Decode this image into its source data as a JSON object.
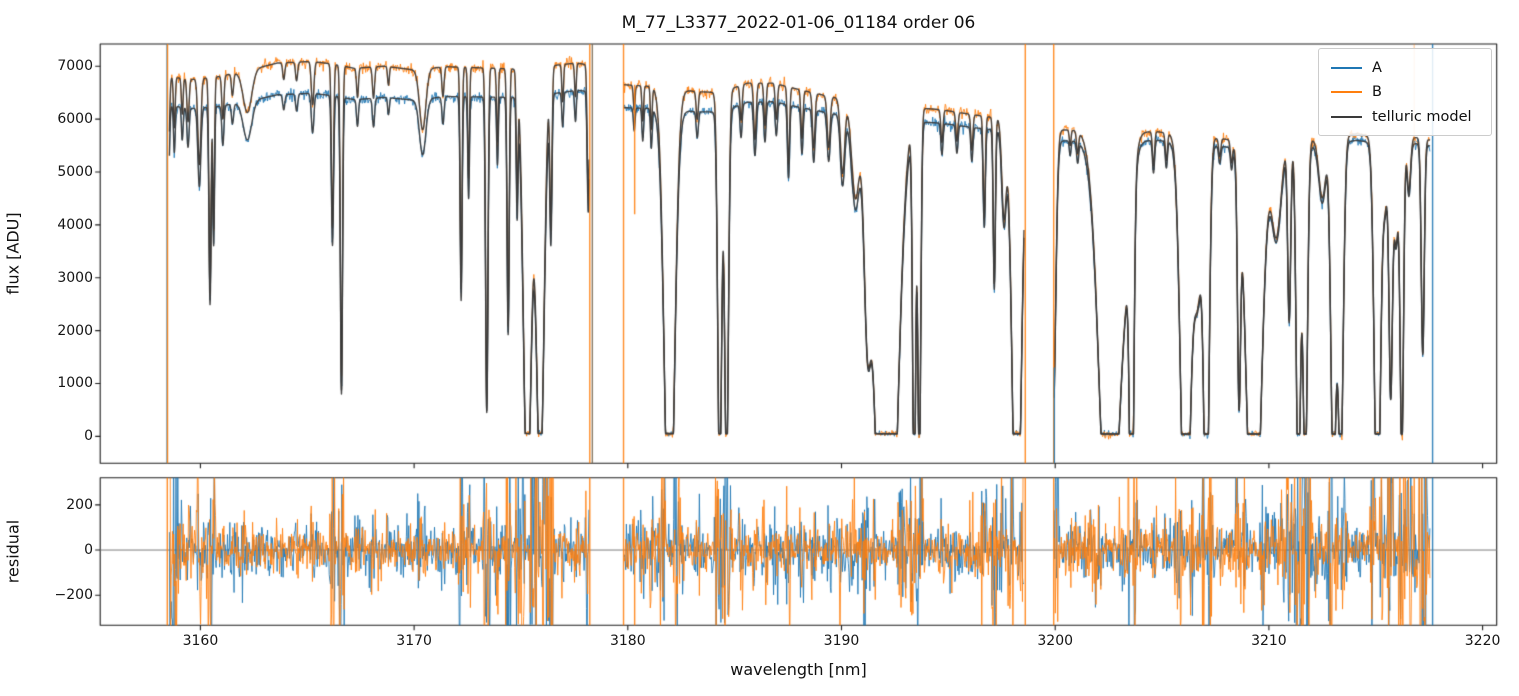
{
  "figure_title": "M_77_L3377_2022-01-06_01184  order 06",
  "chart_data": {
    "type": "line",
    "title": "M_77_L3377_2022-01-06_01184  order 06",
    "xlabel": "wavelength [nm]",
    "xlim": [
      3155.31,
      3220.66
    ],
    "xticks": [
      3160,
      3170,
      3180,
      3190,
      3200,
      3210,
      3220
    ],
    "grid": false,
    "panels": [
      {
        "id": "flux",
        "ylabel": "flux [ADU]",
        "ylim": [
          -510,
          7420
        ],
        "yticks": [
          0,
          1000,
          2000,
          3000,
          4000,
          5000,
          6000,
          7000
        ],
        "legend_position": "upper right"
      },
      {
        "id": "residual",
        "ylabel": "residual",
        "ylim": [
          -333,
          320
        ],
        "yticks": [
          -200,
          0,
          200
        ],
        "ytick_labels": [
          "−200",
          "0",
          "200"
        ],
        "zero_line": true
      }
    ],
    "series": [
      {
        "name": "A",
        "color": "#1f77b4"
      },
      {
        "name": "B",
        "color": "#ff7f0e"
      },
      {
        "name": "telluric model",
        "color": "#3a3a3a"
      }
    ],
    "spectrum": {
      "segments_nm": [
        [
          3158.55,
          3178.2
        ],
        [
          3179.82,
          3198.55
        ],
        [
          3199.95,
          3217.55
        ]
      ],
      "continuum_B": [
        [
          3158.5,
          6800
        ],
        [
          3159.6,
          6750
        ],
        [
          3160.8,
          6800
        ],
        [
          3162,
          6900
        ],
        [
          3163,
          7000
        ],
        [
          3163.6,
          7060
        ],
        [
          3165.2,
          7090
        ],
        [
          3166.2,
          7040
        ],
        [
          3167.2,
          6960
        ],
        [
          3168.6,
          7000
        ],
        [
          3170,
          6930
        ],
        [
          3171.5,
          6990
        ],
        [
          3173,
          6970
        ],
        [
          3174.5,
          6950
        ],
        [
          3176.2,
          7000
        ],
        [
          3177.6,
          7060
        ],
        [
          3178.2,
          7020
        ],
        [
          3179.8,
          6650
        ],
        [
          3181,
          6620
        ],
        [
          3183.2,
          6520
        ],
        [
          3184.3,
          6500
        ],
        [
          3185.6,
          6680
        ],
        [
          3186.8,
          6680
        ],
        [
          3188,
          6560
        ],
        [
          3189.5,
          6420
        ],
        [
          3191,
          6320
        ],
        [
          3193,
          6230
        ],
        [
          3194.6,
          6180
        ],
        [
          3196.2,
          6080
        ],
        [
          3198,
          5980
        ],
        [
          3198.6,
          5920
        ],
        [
          3199.9,
          5800
        ],
        [
          3201,
          5790
        ],
        [
          3203,
          5760
        ],
        [
          3204.8,
          5760
        ],
        [
          3206.2,
          5680
        ],
        [
          3208,
          5620
        ],
        [
          3210,
          5600
        ],
        [
          3212.2,
          5620
        ],
        [
          3214.1,
          5720
        ],
        [
          3215.5,
          5640
        ],
        [
          3216.9,
          5650
        ],
        [
          3217.6,
          5600
        ]
      ],
      "A_to_B_ratio": [
        [
          3158.5,
          0.92
        ],
        [
          3163,
          0.915
        ],
        [
          3168,
          0.915
        ],
        [
          3172,
          0.92
        ],
        [
          3177,
          0.925
        ],
        [
          3180,
          0.935
        ],
        [
          3185,
          0.945
        ],
        [
          3190,
          0.952
        ],
        [
          3194,
          0.958
        ],
        [
          3198,
          0.962
        ],
        [
          3201,
          0.965
        ],
        [
          3205,
          0.972
        ],
        [
          3209,
          0.975
        ],
        [
          3213,
          0.978
        ],
        [
          3217.6,
          0.98
        ]
      ],
      "absorption_lines": [
        [
          3158.5,
          0.05,
          0.25
        ],
        [
          3158.78,
          0.04,
          0.14
        ],
        [
          3159.15,
          0.04,
          0.1
        ],
        [
          3159.42,
          0.05,
          0.12
        ],
        [
          3159.95,
          0.07,
          0.24
        ],
        [
          3160.45,
          0.05,
          0.6
        ],
        [
          3160.62,
          0.04,
          0.42
        ],
        [
          3161.05,
          0.05,
          0.12
        ],
        [
          3161.5,
          0.05,
          0.06
        ],
        [
          3162.2,
          0.2,
          0.115
        ],
        [
          3163.9,
          0.05,
          0.045
        ],
        [
          3164.5,
          0.05,
          0.05
        ],
        [
          3165.25,
          0.06,
          0.115
        ],
        [
          3166.18,
          0.05,
          0.44
        ],
        [
          3166.6,
          0.05,
          0.875
        ],
        [
          3167.35,
          0.045,
          0.08
        ],
        [
          3168.1,
          0.05,
          0.085
        ],
        [
          3168.8,
          0.04,
          0.05
        ],
        [
          3170.4,
          0.15,
          0.165
        ],
        [
          3171.35,
          0.05,
          0.08
        ],
        [
          3172.2,
          0.045,
          0.6
        ],
        [
          3172.55,
          0.04,
          0.3
        ],
        [
          3173.4,
          0.055,
          0.93
        ],
        [
          3173.9,
          0.04,
          0.2
        ],
        [
          3174.4,
          0.05,
          0.7
        ],
        [
          3174.82,
          0.04,
          0.33
        ],
        [
          3175.3,
          0.18,
          1.18
        ],
        [
          3175.9,
          0.18,
          1.12
        ],
        [
          3176.4,
          0.05,
          0.42
        ],
        [
          3176.95,
          0.04,
          0.1
        ],
        [
          3177.55,
          0.04,
          0.09
        ],
        [
          3178.15,
          0.05,
          0.35
        ],
        [
          3180.3,
          0.04,
          0.07
        ],
        [
          3180.7,
          0.04,
          0.1
        ],
        [
          3181.1,
          0.04,
          0.12
        ],
        [
          3181.95,
          0.23,
          1.38
        ],
        [
          3183.25,
          0.05,
          0.08
        ],
        [
          3184.3,
          0.09,
          1.15
        ],
        [
          3184.62,
          0.09,
          1.1
        ],
        [
          3185.3,
          0.05,
          0.1
        ],
        [
          3185.95,
          0.06,
          0.16
        ],
        [
          3186.42,
          0.05,
          0.12
        ],
        [
          3186.95,
          0.05,
          0.1
        ],
        [
          3187.52,
          0.05,
          0.22
        ],
        [
          3188.15,
          0.05,
          0.14
        ],
        [
          3188.7,
          0.06,
          0.16
        ],
        [
          3189.4,
          0.07,
          0.15
        ],
        [
          3190.05,
          0.1,
          0.22
        ],
        [
          3190.65,
          0.18,
          0.28
        ],
        [
          3191.2,
          0.15,
          0.5
        ],
        [
          3192.1,
          0.45,
          1.9
        ],
        [
          3193.4,
          0.07,
          1.2
        ],
        [
          3193.64,
          0.07,
          1.1
        ],
        [
          3194.7,
          0.05,
          0.1
        ],
        [
          3195.4,
          0.05,
          0.09
        ],
        [
          3196.1,
          0.05,
          0.11
        ],
        [
          3196.68,
          0.05,
          0.32
        ],
        [
          3197.15,
          0.05,
          0.52
        ],
        [
          3197.6,
          0.1,
          0.3
        ],
        [
          3198.2,
          0.2,
          1.45
        ],
        [
          3199.9,
          0.12,
          0.95
        ],
        [
          3200.7,
          0.04,
          0.05
        ],
        [
          3201.05,
          0.05,
          0.07
        ],
        [
          3202.55,
          0.45,
          1.5
        ],
        [
          3203.4,
          0.25,
          0.22
        ],
        [
          3203.58,
          0.09,
          1.25
        ],
        [
          3204.6,
          0.05,
          0.11
        ],
        [
          3205.2,
          0.05,
          0.09
        ],
        [
          3206.1,
          0.22,
          1.45
        ],
        [
          3206.68,
          0.2,
          0.52
        ],
        [
          3207.08,
          0.12,
          1.3
        ],
        [
          3207.7,
          0.05,
          0.06
        ],
        [
          3208.25,
          0.05,
          0.07
        ],
        [
          3208.6,
          0.07,
          0.75
        ],
        [
          3209.3,
          0.33,
          1.5
        ],
        [
          3210.35,
          0.22,
          0.32
        ],
        [
          3210.95,
          0.07,
          0.6
        ],
        [
          3211.38,
          0.1,
          1.2
        ],
        [
          3211.7,
          0.1,
          1.15
        ],
        [
          3212.5,
          0.16,
          0.2
        ],
        [
          3213.02,
          0.12,
          1.15
        ],
        [
          3213.36,
          0.12,
          1.1
        ],
        [
          3215.08,
          0.14,
          1.35
        ],
        [
          3215.45,
          0.1,
          0.2
        ],
        [
          3215.7,
          0.08,
          0.85
        ],
        [
          3215.95,
          0.1,
          0.35
        ],
        [
          3216.22,
          0.08,
          1.05
        ],
        [
          3216.55,
          0.08,
          0.18
        ],
        [
          3217.2,
          0.07,
          0.72
        ]
      ],
      "noise": {
        "flux_sigma_base": 28,
        "flux_sigma_scale": 0.0035,
        "residual_sigma": 48
      },
      "spikes_flux": [
        {
          "x": 3158.44,
          "series": "A",
          "y": [
            -9000,
            9000
          ]
        },
        {
          "x": 3158.46,
          "series": "B",
          "y": [
            -9000,
            9000
          ]
        },
        {
          "x": 3178.22,
          "series": "B",
          "y": [
            -9000,
            9000
          ]
        },
        {
          "x": 3178.34,
          "series": "M",
          "y": [
            -9000,
            9000
          ]
        },
        {
          "x": 3179.8,
          "series": "B",
          "y": [
            -9000,
            9000
          ]
        },
        {
          "x": 3180.32,
          "series": "B",
          "y": [
            4200,
            6650
          ]
        },
        {
          "x": 3198.6,
          "series": "B",
          "y": [
            -9000,
            9000
          ]
        },
        {
          "x": 3199.93,
          "series": "B",
          "y": [
            -9000,
            9000
          ]
        },
        {
          "x": 3199.96,
          "series": "A",
          "y": [
            -9000,
            1300
          ]
        },
        {
          "x": 3216.8,
          "series": "Blight",
          "y": [
            5500,
            9000
          ]
        },
        {
          "x": 3217.66,
          "series": "A",
          "y": [
            -9000,
            9000
          ]
        }
      ],
      "spikes_residual": [
        {
          "x": 3158.45,
          "series": "B",
          "y": [
            -9000,
            9000
          ]
        },
        {
          "x": 3178.22,
          "series": "B",
          "y": [
            -9000,
            9000
          ]
        },
        {
          "x": 3179.8,
          "series": "B",
          "y": [
            -9000,
            9000
          ]
        },
        {
          "x": 3180.32,
          "series": "B",
          "y": [
            -340,
            60
          ]
        },
        {
          "x": 3198.6,
          "series": "B",
          "y": [
            -9000,
            9000
          ]
        },
        {
          "x": 3199.93,
          "series": "B",
          "y": [
            -9000,
            9000
          ]
        },
        {
          "x": 3216.8,
          "series": "B",
          "y": [
            0,
            9000
          ]
        },
        {
          "x": 3217.66,
          "series": "A",
          "y": [
            -9000,
            9000
          ]
        }
      ],
      "residual_hot_zones": [
        [
          3158.45,
          3159.0,
          3.0
        ],
        [
          3175.5,
          3176.5,
          2.5
        ],
        [
          3211.2,
          3212.2,
          1.8
        ],
        [
          3216.4,
          3217.6,
          2.0
        ]
      ]
    }
  }
}
